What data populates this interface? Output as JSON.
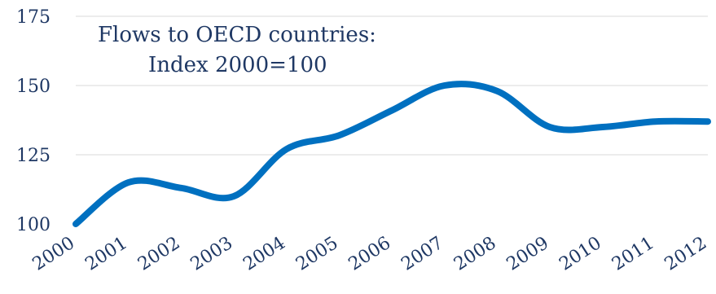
{
  "chart_data": {
    "type": "line",
    "title_lines": [
      "Flows to OECD countries:",
      "Index 2000=100"
    ],
    "xlabel": "",
    "ylabel": "",
    "ylim": [
      100,
      175
    ],
    "yticks": [
      100,
      125,
      150,
      175
    ],
    "x": [
      "2000",
      "2001",
      "2002",
      "2003",
      "2004",
      "2005",
      "2006",
      "2007",
      "2008",
      "2009",
      "2010",
      "2011",
      "2012"
    ],
    "series": [
      {
        "values": [
          100,
          115,
          113,
          110,
          127,
          132,
          141,
          150,
          148,
          135,
          135,
          137,
          137
        ],
        "color": "#0070c0"
      }
    ],
    "grid": true,
    "legend": "none"
  }
}
